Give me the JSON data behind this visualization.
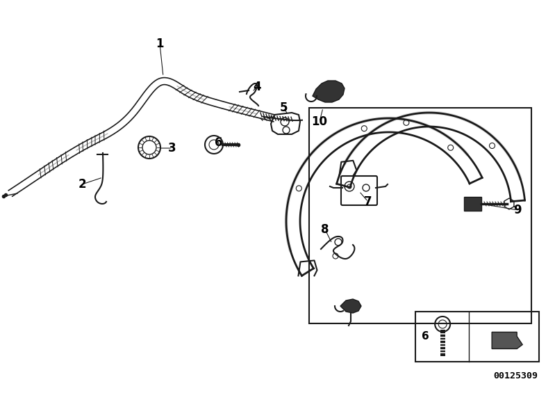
{
  "background_color": "#ffffff",
  "line_color": "#1a1a1a",
  "text_color": "#000000",
  "fig_width": 7.99,
  "fig_height": 5.65,
  "dpi": 100,
  "part_number_id": "00125309",
  "cable_color": "#1a1a1a",
  "dark_fill": "#222222",
  "mid_fill": "#555555"
}
